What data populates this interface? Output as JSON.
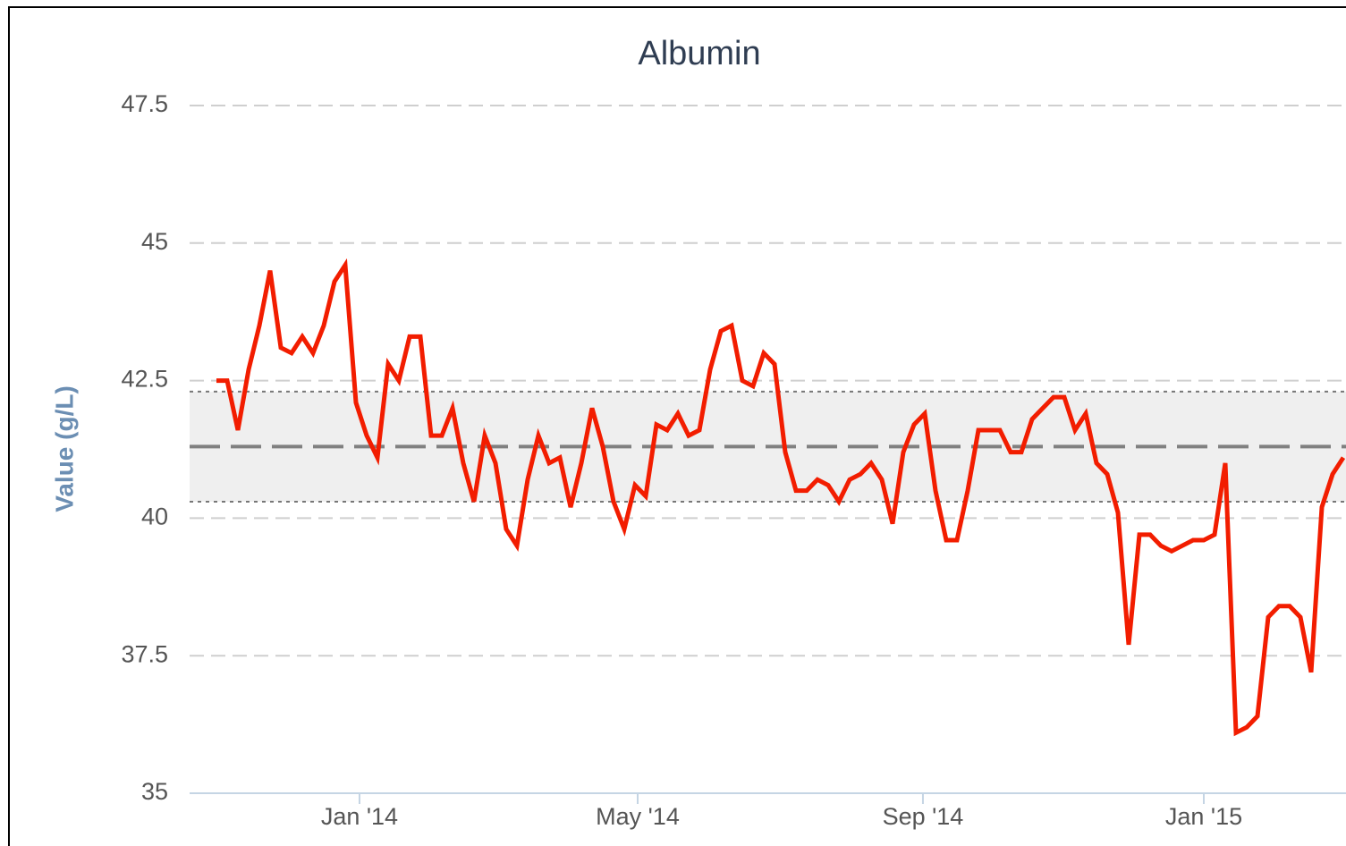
{
  "chart_data": {
    "type": "line",
    "title": "Albumin",
    "y_axis_label": "Value (g/L)",
    "color": "#f21d00",
    "ylim": [
      35,
      47.5
    ],
    "yticks": [
      35,
      37.5,
      40,
      42.5,
      45,
      47.5
    ],
    "grid": true,
    "xlim": [
      -2.5,
      105.25
    ],
    "xticks": [
      {
        "value": 13.33,
        "label": "Jan '14"
      },
      {
        "value": 39.25,
        "label": "May '14"
      },
      {
        "value": 65.83,
        "label": "Sep '14"
      },
      {
        "value": 92,
        "label": "Jan '15"
      }
    ],
    "plot_band": {
      "from": 40.3,
      "to": 42.3
    },
    "reference_line": 41.3,
    "categories": [
      null,
      null,
      null,
      null,
      null,
      null,
      null,
      null,
      null,
      null,
      null,
      null,
      null,
      null,
      null,
      null,
      null,
      null,
      null,
      null,
      null,
      null,
      null,
      null,
      null,
      null,
      null,
      null,
      null,
      null,
      null,
      null,
      null,
      null,
      null,
      null,
      null,
      null,
      null,
      null,
      null,
      null,
      null,
      null,
      null,
      null,
      null,
      null,
      null,
      null,
      null,
      null,
      null,
      null,
      null,
      null,
      null,
      null,
      null,
      null,
      null,
      null,
      null,
      null,
      null,
      null,
      null,
      null,
      null,
      null,
      null,
      null,
      null,
      null,
      null,
      null,
      null,
      null,
      null,
      null,
      null,
      null,
      null,
      null,
      null,
      null,
      null,
      null,
      null,
      null,
      null,
      null,
      null,
      null,
      null,
      null,
      null,
      null,
      null,
      null,
      null,
      null,
      null,
      null,
      null,
      null
    ],
    "values": [
      42.5,
      42.5,
      41.6,
      42.7,
      43.5,
      44.5,
      43.1,
      43.0,
      43.3,
      43.0,
      43.5,
      44.3,
      44.6,
      42.1,
      41.5,
      41.1,
      42.8,
      42.5,
      43.3,
      43.3,
      41.5,
      41.5,
      42.0,
      41.0,
      40.3,
      41.5,
      41.0,
      39.8,
      39.5,
      40.7,
      41.5,
      41.0,
      41.1,
      40.2,
      41.0,
      42.0,
      41.3,
      40.3,
      39.8,
      40.6,
      40.4,
      41.7,
      41.6,
      41.9,
      41.5,
      41.6,
      42.7,
      43.4,
      43.5,
      42.5,
      42.4,
      43.0,
      42.8,
      41.2,
      40.5,
      40.5,
      40.7,
      40.6,
      40.3,
      40.7,
      40.8,
      41.0,
      40.7,
      39.9,
      41.2,
      41.7,
      41.9,
      40.5,
      39.6,
      39.6,
      40.5,
      41.6,
      41.6,
      41.6,
      41.2,
      41.2,
      41.8,
      42.0,
      42.2,
      42.2,
      41.6,
      41.9,
      41.0,
      40.8,
      40.1,
      37.7,
      39.7,
      39.7,
      39.5,
      39.4,
      39.5,
      39.6,
      39.6,
      39.7,
      41.0,
      36.1,
      36.2,
      36.4,
      38.2,
      38.4,
      38.4,
      38.2,
      37.2,
      40.2,
      40.8,
      41.1
    ]
  }
}
